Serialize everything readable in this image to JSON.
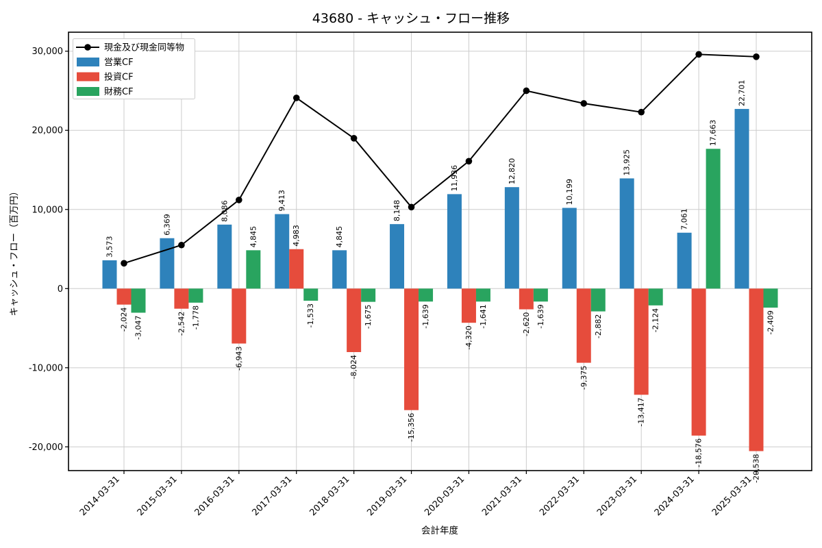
{
  "chart_data": {
    "type": "bar",
    "title": "43680 - キャッシュ・フロー推移",
    "xlabel": "会計年度",
    "ylabel": "キャッシュ・フロー（百万円）",
    "categories": [
      "2014-03-31",
      "2015-03-31",
      "2016-03-31",
      "2017-03-31",
      "2018-03-31",
      "2019-03-31",
      "2020-03-31",
      "2021-03-31",
      "2022-03-31",
      "2023-03-31",
      "2024-03-31",
      "2025-03-31"
    ],
    "series": [
      {
        "name": "現金及び現金同等物",
        "type": "line",
        "color": "#000000",
        "values": [
          3200,
          5500,
          11200,
          24100,
          19000,
          10300,
          16100,
          25000,
          23400,
          22300,
          29600,
          29300
        ]
      },
      {
        "name": "営業CF",
        "type": "bar",
        "color": "#2e82bb",
        "values": [
          3573,
          6369,
          8086,
          9413,
          4845,
          8148,
          11936,
          12820,
          10199,
          13925,
          7061,
          22701
        ]
      },
      {
        "name": "投資CF",
        "type": "bar",
        "color": "#e64c3c",
        "values": [
          -2024,
          -2542,
          -6943,
          4983,
          -8024,
          -15356,
          -4320,
          -2620,
          -9375,
          -13417,
          -18576,
          -20538
        ]
      },
      {
        "name": "財務CF",
        "type": "bar",
        "color": "#29a45f",
        "values": [
          -3047,
          -1778,
          4845,
          -1533,
          -1675,
          -1639,
          -1641,
          -1639,
          -2882,
          -2124,
          17663,
          -2409
        ]
      }
    ],
    "ylim": [
      -23000,
      32400
    ],
    "yticks": [
      30000,
      20000,
      10000,
      0,
      -10000,
      -20000
    ],
    "ytick_labels": [
      "30,000",
      "20,000",
      "10,000",
      "0",
      "-10,000",
      "-20,000"
    ],
    "grid": true,
    "legend_position": "upper left",
    "bar_value_labels": true
  }
}
